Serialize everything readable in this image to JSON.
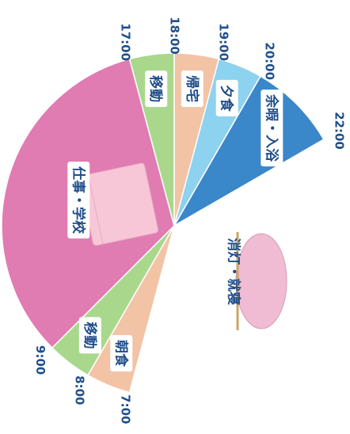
{
  "diagram": {
    "time_ticks": [
      "7:00",
      "8:00",
      "9:00",
      "17:00",
      "18:00",
      "19:00",
      "20:00",
      "22:00"
    ],
    "segments": [
      {
        "label": "朝食",
        "start": "7:00",
        "end": "8:00",
        "color": "#f3c3a6",
        "text_color": "#1f4e8a"
      },
      {
        "label": "移動",
        "start": "8:00",
        "end": "9:00",
        "color": "#a9d88c",
        "text_color": "#1f4e8a"
      },
      {
        "label": "仕事・学校",
        "start": "9:00",
        "end": "17:00",
        "color": "#e07cb2",
        "text_color": "#1f4e8a"
      },
      {
        "label": "移動",
        "start": "17:00",
        "end": "18:00",
        "color": "#a9d88c",
        "text_color": "#1f4e8a"
      },
      {
        "label": "帰宅",
        "start": "18:00",
        "end": "19:00",
        "color": "#f3c3a6",
        "text_color": "#1f4e8a"
      },
      {
        "label": "夕食",
        "start": "19:00",
        "end": "20:00",
        "color": "#8dd2ee",
        "text_color": "#1f4e8a"
      },
      {
        "label": "余暇・入浴",
        "start": "20:00",
        "end": "22:00",
        "color": "#3a87c9",
        "text_color": "#1f4e8a"
      },
      {
        "label": "消灯・就寝",
        "start": "22:00",
        "end": "7:00",
        "color": "#ffffff",
        "text_color": "#1f4e8a"
      }
    ]
  }
}
